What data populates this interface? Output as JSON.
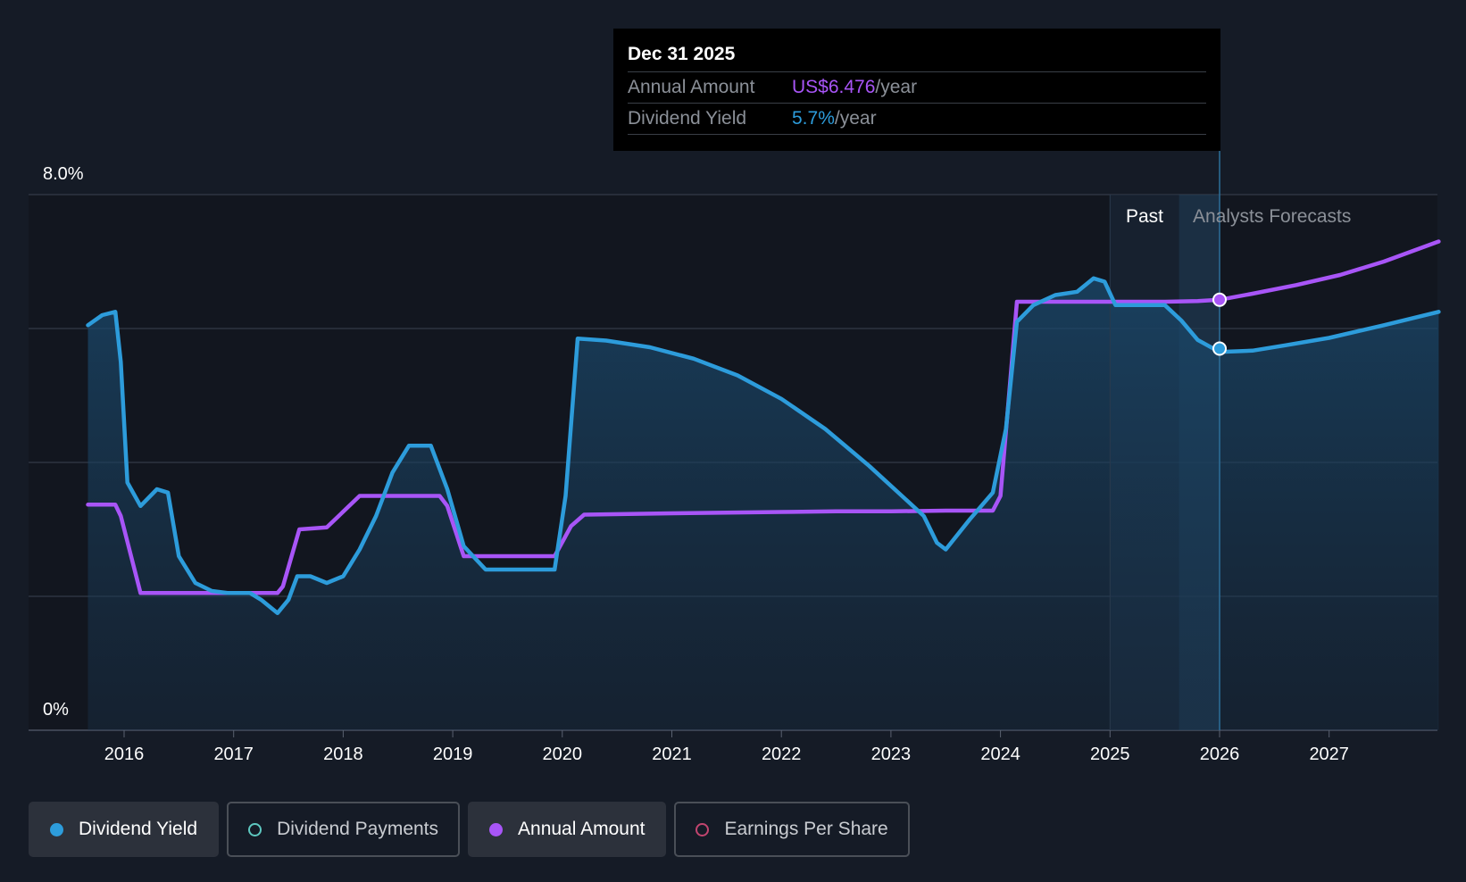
{
  "tooltip": {
    "date": "Dec 31 2025",
    "annual_label": "Annual Amount",
    "annual_value": "US$6.476",
    "annual_unit": "/year",
    "yield_label": "Dividend Yield",
    "yield_value": "5.7%",
    "yield_unit": "/year"
  },
  "regions": {
    "past": "Past",
    "forecast": "Analysts Forecasts"
  },
  "legend": [
    {
      "label": "Dividend Yield",
      "color": "#2d9cdb",
      "filled": true,
      "active": true
    },
    {
      "label": "Dividend Payments",
      "color": "#5ec8c0",
      "filled": false,
      "active": false
    },
    {
      "label": "Annual Amount",
      "color": "#a855f7",
      "filled": true,
      "active": true
    },
    {
      "label": "Earnings Per Share",
      "color": "#c2456f",
      "filled": false,
      "active": false
    }
  ],
  "chart_data": {
    "type": "line",
    "ylim": [
      0,
      8
    ],
    "y_ticks": [
      "8.0%",
      "0%"
    ],
    "x_ticks": [
      "2016",
      "2017",
      "2018",
      "2019",
      "2020",
      "2021",
      "2022",
      "2023",
      "2024",
      "2025",
      "2026",
      "2027"
    ],
    "grid": true,
    "colors": {
      "yield": "#2d9cdb",
      "annual": "#a855f7"
    },
    "series": [
      {
        "name": "Dividend Yield",
        "x": [
          2015.67,
          2015.8,
          2015.92,
          2015.97,
          2016.03,
          2016.15,
          2016.3,
          2016.4,
          2016.5,
          2016.65,
          2016.8,
          2016.95,
          2017.15,
          2017.25,
          2017.4,
          2017.5,
          2017.58,
          2017.7,
          2017.85,
          2018.0,
          2018.15,
          2018.3,
          2018.45,
          2018.6,
          2018.8,
          2018.95,
          2019.1,
          2019.3,
          2019.5,
          2019.7,
          2019.93,
          2020.03,
          2020.14,
          2020.4,
          2020.8,
          2021.2,
          2021.6,
          2022.0,
          2022.4,
          2022.8,
          2023.1,
          2023.3,
          2023.42,
          2023.5,
          2023.72,
          2023.93,
          2024.05,
          2024.15,
          2024.3,
          2024.5,
          2024.7,
          2024.85,
          2024.95,
          2025.05,
          2025.15,
          2025.3,
          2025.5,
          2025.65,
          2025.8,
          2026.0,
          2026.3,
          2026.6,
          2027.0,
          2027.5,
          2028.0
        ],
        "values": [
          6.05,
          6.2,
          6.25,
          5.5,
          3.7,
          3.35,
          3.6,
          3.55,
          2.6,
          2.2,
          2.08,
          2.05,
          2.05,
          1.95,
          1.75,
          1.95,
          2.3,
          2.3,
          2.2,
          2.3,
          2.7,
          3.2,
          3.85,
          4.25,
          4.25,
          3.6,
          2.75,
          2.4,
          2.4,
          2.4,
          2.4,
          3.5,
          5.85,
          5.82,
          5.72,
          5.55,
          5.3,
          4.95,
          4.5,
          3.95,
          3.5,
          3.2,
          2.8,
          2.7,
          3.15,
          3.55,
          4.5,
          6.1,
          6.35,
          6.5,
          6.55,
          6.75,
          6.7,
          6.35,
          6.35,
          6.35,
          6.35,
          6.12,
          5.83,
          5.65,
          5.67,
          5.75,
          5.86,
          6.05,
          6.25
        ]
      },
      {
        "name": "Annual Amount",
        "x": [
          2015.67,
          2015.92,
          2015.97,
          2016.15,
          2016.4,
          2016.8,
          2017.2,
          2017.4,
          2017.45,
          2017.6,
          2017.85,
          2018.15,
          2018.5,
          2018.88,
          2018.95,
          2019.1,
          2019.4,
          2019.7,
          2019.93,
          2020.08,
          2020.2,
          2020.6,
          2021.0,
          2021.5,
          2022.0,
          2022.5,
          2023.0,
          2023.5,
          2023.93,
          2024.0,
          2024.15,
          2024.5,
          2025.0,
          2025.5,
          2025.8,
          2026.0,
          2026.3,
          2026.7,
          2027.1,
          2027.5,
          2028.0
        ],
        "values": [
          3.37,
          3.37,
          3.2,
          2.05,
          2.05,
          2.05,
          2.05,
          2.05,
          2.15,
          3.0,
          3.03,
          3.5,
          3.5,
          3.5,
          3.35,
          2.6,
          2.6,
          2.6,
          2.6,
          3.05,
          3.22,
          3.23,
          3.24,
          3.25,
          3.26,
          3.27,
          3.27,
          3.28,
          3.28,
          3.5,
          6.4,
          6.4,
          6.4,
          6.4,
          6.41,
          6.43,
          6.52,
          6.65,
          6.8,
          7.0,
          7.3
        ]
      }
    ],
    "highlight": {
      "x": 2026.0,
      "yield": 5.7,
      "annual": 6.476
    }
  }
}
